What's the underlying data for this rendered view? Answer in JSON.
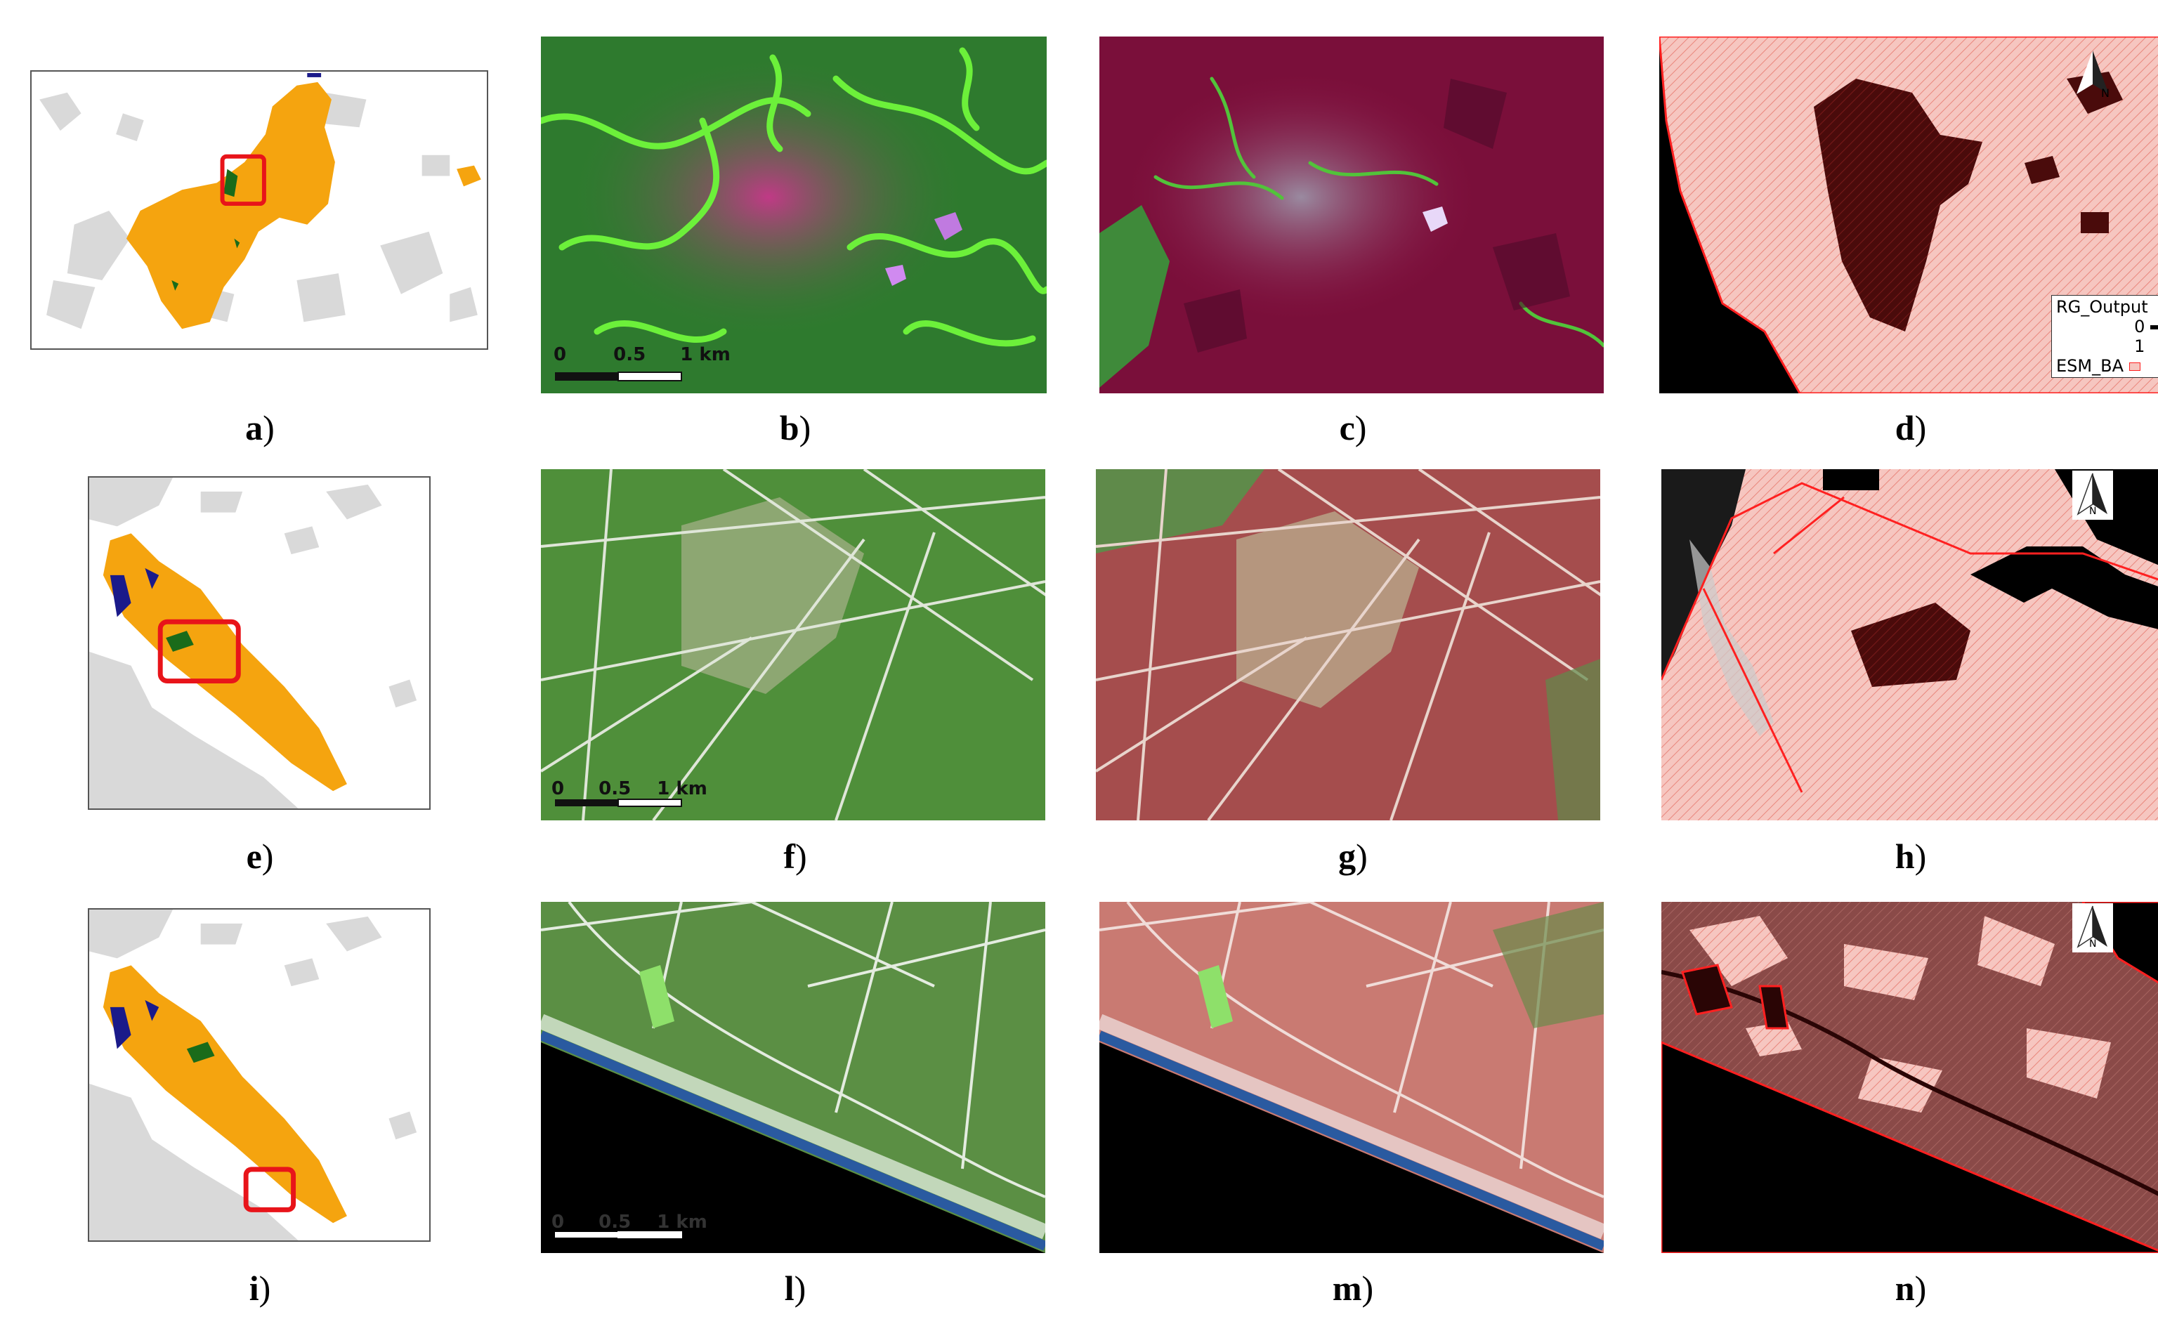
{
  "captions": {
    "a": {
      "letter": "a",
      "paren": ")"
    },
    "b": {
      "letter": "b",
      "paren": ")"
    },
    "c": {
      "letter": "c",
      "paren": ")"
    },
    "d": {
      "letter": "d",
      "paren": ")"
    },
    "e": {
      "letter": "e",
      "paren": ")"
    },
    "f": {
      "letter": "f",
      "paren": ")"
    },
    "g": {
      "letter": "g",
      "paren": ")"
    },
    "h": {
      "letter": "h",
      "paren": ")"
    },
    "i": {
      "letter": "i",
      "paren": ")"
    },
    "l": {
      "letter": "l",
      "paren": ")"
    },
    "m": {
      "letter": "m",
      "paren": ")"
    },
    "n": {
      "letter": "n",
      "paren": ")"
    }
  },
  "scalebar": {
    "t0": "0",
    "t1": "0.5",
    "t2": "1 km"
  },
  "legend": {
    "title": "RG_Output",
    "v0": "0",
    "v1": "1",
    "layer": "ESM_BA"
  },
  "north": "N",
  "colors": {
    "burned_area": "#f5a40f",
    "background_gray": "#d9d9d9",
    "highlight_box": "#e8141a",
    "unburned_patch": "#1a6b1a",
    "water_blue": "#1a1a8a",
    "rg_burned": "#f6c6c0",
    "rg_unburned": "#4a0b0b",
    "esm_outline": "#ff2020"
  },
  "icons": [
    "north-arrow-icon",
    "scale-bar-icon"
  ]
}
